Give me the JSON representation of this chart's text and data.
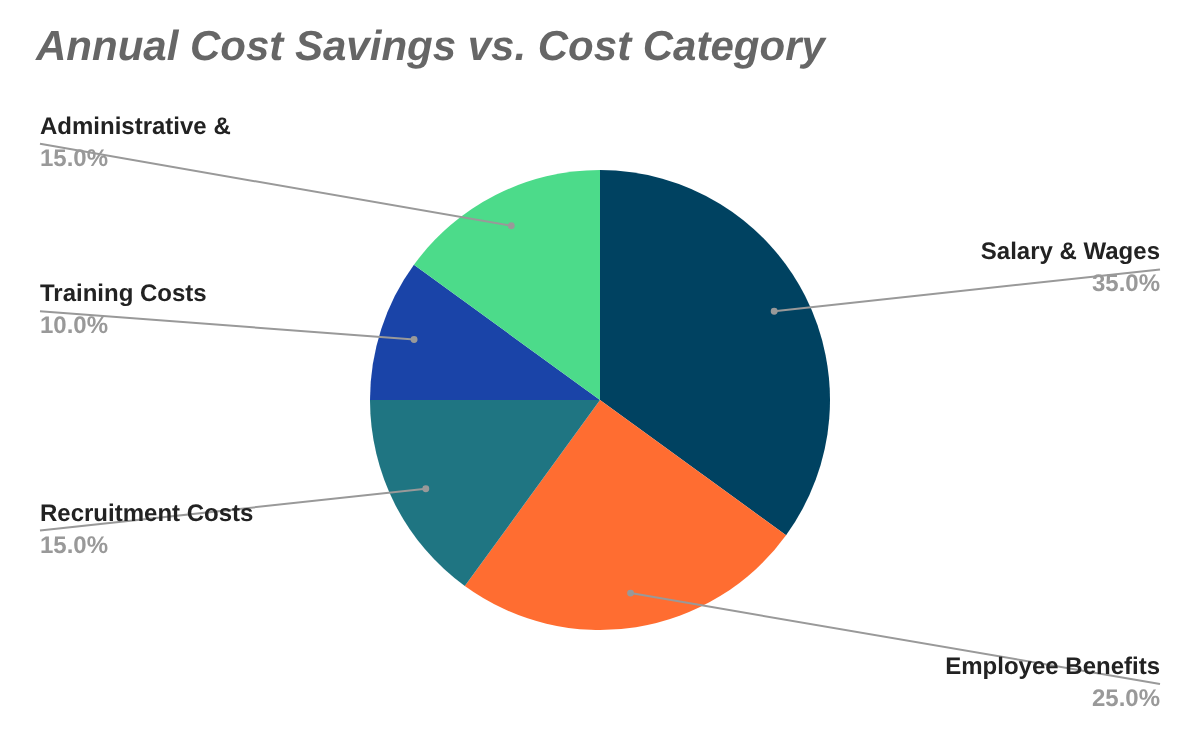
{
  "chart_data": {
    "type": "pie",
    "title": "Annual Cost Savings vs. Cost Category",
    "categories": [
      "Salary & Wages",
      "Employee Benefits",
      "Recruitment Costs",
      "Training Costs",
      "Administrative &"
    ],
    "values": [
      35,
      25,
      15,
      10,
      15
    ],
    "value_labels": [
      "35.0%",
      "25.0%",
      "15.0%",
      "10.0%",
      "15.0%"
    ],
    "colors": [
      "#004261",
      "#ff6d31",
      "#1f7582",
      "#1a44a8",
      "#4cdb8a"
    ],
    "legend": false
  }
}
